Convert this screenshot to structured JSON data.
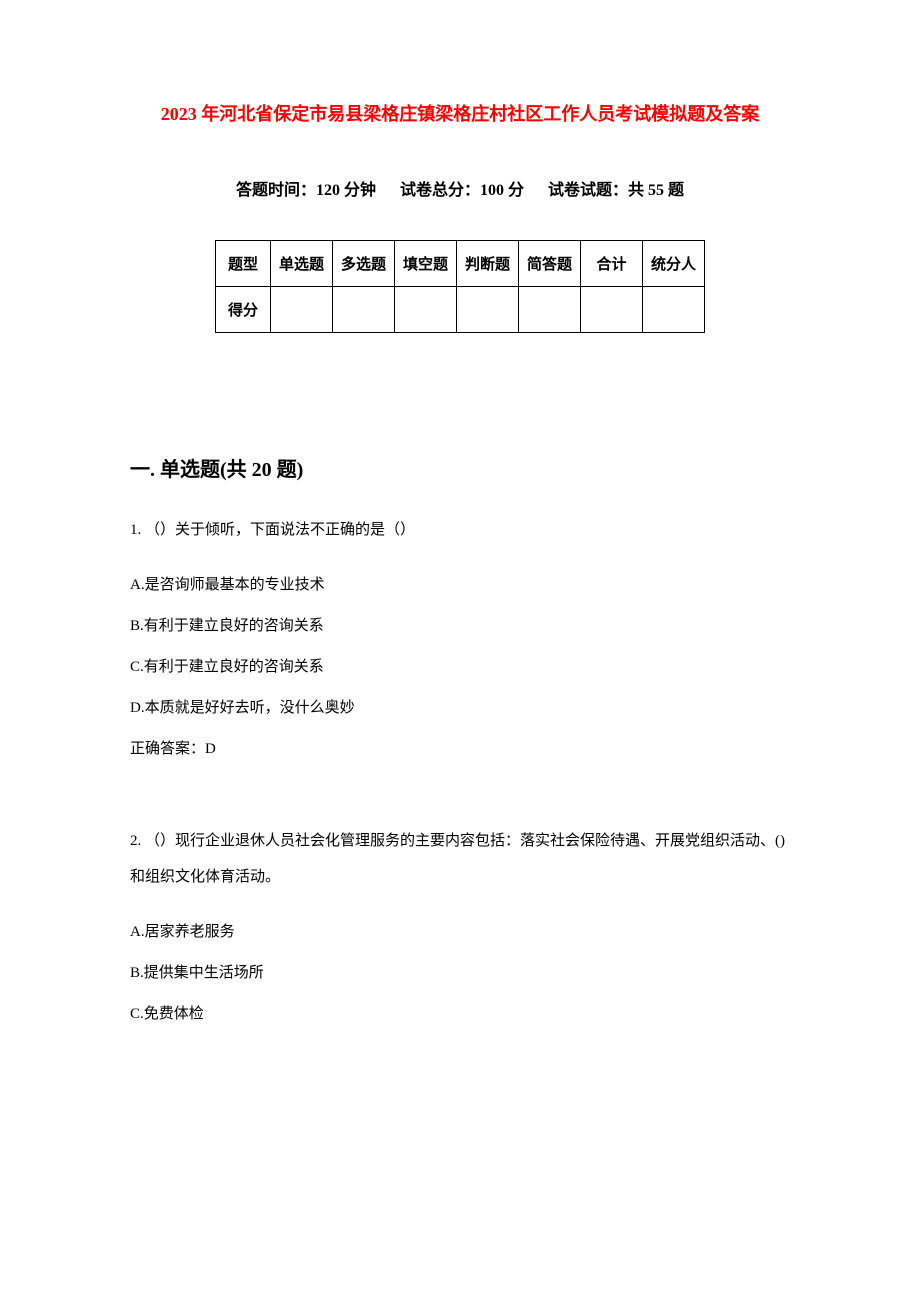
{
  "document": {
    "title": "2023 年河北省保定市易县梁格庄镇梁格庄村社区工作人员考试模拟题及答案",
    "title_color": "#ff0000",
    "background_color": "#ffffff",
    "text_color": "#000000"
  },
  "meta": {
    "time_label": "答题时间：120 分钟",
    "total_score_label": "试卷总分：100 分",
    "question_count_label": "试卷试题：共 55 题"
  },
  "score_table": {
    "columns": [
      "题型",
      "单选题",
      "多选题",
      "填空题",
      "判断题",
      "简答题",
      "合计",
      "统分人"
    ],
    "row_label": "得分",
    "border_color": "#000000"
  },
  "section1": {
    "heading": "一. 单选题(共 20 题)",
    "questions": [
      {
        "number": "1.",
        "prompt": "（）关于倾听，下面说法不正确的是（）",
        "options": [
          "A.是咨询师最基本的专业技术",
          "B.有利于建立良好的咨询关系",
          "C.有利于建立良好的咨询关系",
          "D.本质就是好好去听，没什么奥妙"
        ],
        "answer": "正确答案：D"
      },
      {
        "number": "2.",
        "prompt": "（）现行企业退休人员社会化管理服务的主要内容包括：落实社会保险待遇、开展党组织活动、()和组织文化体育活动。",
        "options": [
          "A.居家养老服务",
          "B.提供集中生活场所",
          "C.免费体检"
        ],
        "answer": ""
      }
    ]
  },
  "typography": {
    "title_fontsize": 18,
    "meta_fontsize": 16,
    "heading_fontsize": 20,
    "body_fontsize": 15,
    "font_family": "SimSun"
  }
}
